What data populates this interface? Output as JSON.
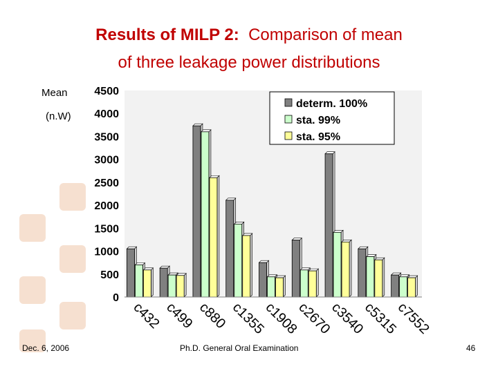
{
  "slide": {
    "title_bold": "Results of MILP 2:",
    "title_rest": "Comparison of mean",
    "title_line2": "of three leakage power distributions",
    "mean_label": "Mean",
    "unit_label": "(n.W)",
    "footer_left": "Dec. 6, 2006",
    "footer_center": "Ph.D. General Oral Examination",
    "page_number": "46"
  },
  "chart_data": {
    "type": "bar",
    "title": "",
    "xlabel": "",
    "ylabel": "Mean (n.W)",
    "ylim": [
      0,
      4500
    ],
    "yticks": [
      "0",
      "500",
      "1000",
      "1500",
      "2000",
      "2500",
      "3000",
      "3500",
      "4000",
      "4500"
    ],
    "grid": false,
    "legend_position": "top-right",
    "categories": [
      "c432",
      "c499",
      "c880",
      "c1355",
      "c1908",
      "c2670",
      "c3540",
      "c5315",
      "c7552"
    ],
    "series": [
      {
        "name": "determ. 100%",
        "color": "#808080",
        "values": [
          1050,
          630,
          3730,
          2110,
          750,
          1240,
          3120,
          1050,
          480
        ]
      },
      {
        "name": "sta. 99%",
        "color": "#ccffcc",
        "values": [
          700,
          480,
          3600,
          1590,
          440,
          590,
          1410,
          880,
          440
        ]
      },
      {
        "name": "sta. 95%",
        "color": "#ffff99",
        "values": [
          590,
          470,
          2600,
          1340,
          420,
          570,
          1200,
          810,
          420
        ]
      }
    ]
  }
}
